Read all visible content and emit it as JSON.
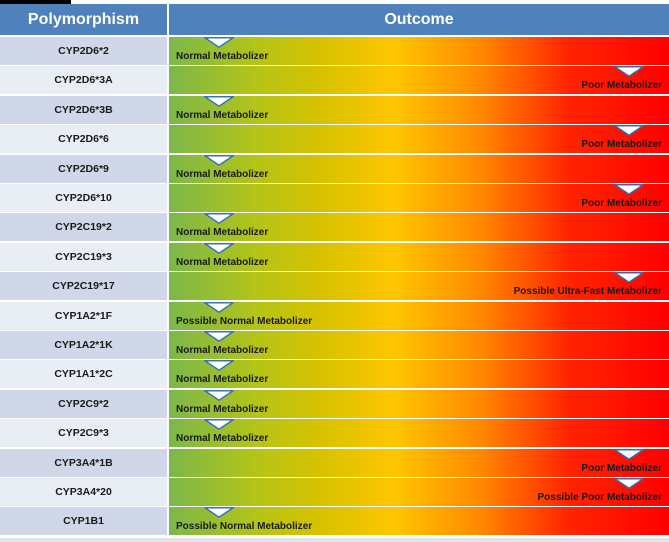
{
  "header": {
    "polymorphism": "Polymorphism",
    "outcome": "Outcome"
  },
  "colors": {
    "header_bg": "#4f81bd",
    "row_dark": "#cfd7e8",
    "row_light": "#e9edf4",
    "marker_stroke": "#2f6fb7"
  },
  "rows": [
    {
      "polymorphism": "CYP2D6*2",
      "outcome": "Normal Metabolizer",
      "position": 0.1,
      "label_side": "left"
    },
    {
      "polymorphism": "CYP2D6*3A",
      "outcome": "Poor Metabolizer",
      "position": 0.92,
      "label_side": "right"
    },
    {
      "polymorphism": "CYP2D6*3B",
      "outcome": "Normal Metabolizer",
      "position": 0.1,
      "label_side": "left"
    },
    {
      "polymorphism": "CYP2D6*6",
      "outcome": "Poor Metabolizer",
      "position": 0.92,
      "label_side": "right"
    },
    {
      "polymorphism": "CYP2D6*9",
      "outcome": "Normal Metabolizer",
      "position": 0.1,
      "label_side": "left"
    },
    {
      "polymorphism": "CYP2D6*10",
      "outcome": "Poor Metabolizer",
      "position": 0.92,
      "label_side": "right"
    },
    {
      "polymorphism": "CYP2C19*2",
      "outcome": "Normal Metabolizer",
      "position": 0.1,
      "label_side": "left"
    },
    {
      "polymorphism": "CYP2C19*3",
      "outcome": "Normal Metabolizer",
      "position": 0.1,
      "label_side": "left"
    },
    {
      "polymorphism": "CYP2C19*17",
      "outcome": "Possible Ultra-Fast Metabolizer",
      "position": 0.92,
      "label_side": "right"
    },
    {
      "polymorphism": "CYP1A2*1F",
      "outcome": "Possible Normal Metabolizer",
      "position": 0.1,
      "label_side": "left"
    },
    {
      "polymorphism": "CYP1A2*1K",
      "outcome": "Normal Metabolizer",
      "position": 0.1,
      "label_side": "left"
    },
    {
      "polymorphism": "CYP1A1*2C",
      "outcome": "Normal Metabolizer",
      "position": 0.1,
      "label_side": "left"
    },
    {
      "polymorphism": "CYP2C9*2",
      "outcome": "Normal Metabolizer",
      "position": 0.1,
      "label_side": "left"
    },
    {
      "polymorphism": "CYP2C9*3",
      "outcome": "Normal Metabolizer",
      "position": 0.1,
      "label_side": "left"
    },
    {
      "polymorphism": "CYP3A4*1B",
      "outcome": "Poor Metabolizer",
      "position": 0.92,
      "label_side": "right"
    },
    {
      "polymorphism": "CYP3A4*20",
      "outcome": "Possible Poor Metabolizer",
      "position": 0.92,
      "label_side": "right"
    },
    {
      "polymorphism": "CYP1B1",
      "outcome": "Possible Normal Metabolizer",
      "position": 0.1,
      "label_side": "left"
    }
  ]
}
